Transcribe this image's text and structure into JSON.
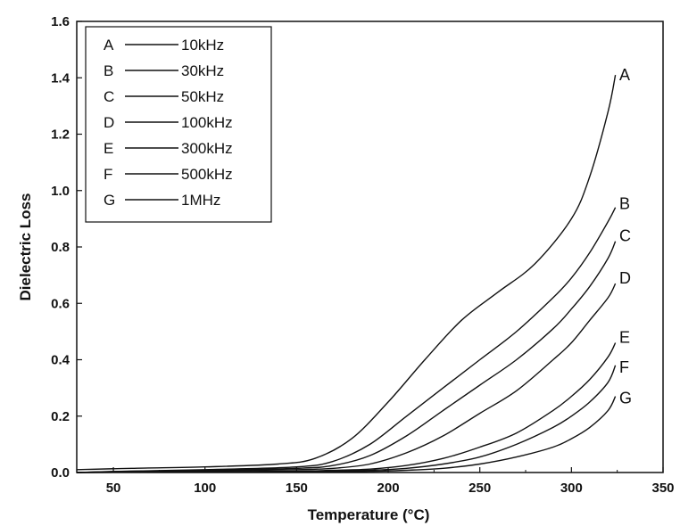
{
  "chart_data": {
    "type": "line",
    "title": "",
    "xlabel": "Temperature (°C)",
    "ylabel": "Dielectric Loss",
    "xlim": [
      30,
      350
    ],
    "ylim": [
      0,
      1.6
    ],
    "xticks": [
      50,
      100,
      150,
      200,
      250,
      300,
      350
    ],
    "xtick_labels": [
      "50",
      "100",
      "150",
      "200",
      "250",
      "300",
      "350"
    ],
    "yticks": [
      0,
      0.2,
      0.4,
      0.6,
      0.8,
      1.0,
      1.2,
      1.4,
      1.6
    ],
    "ytick_labels": [
      "0.0",
      "0.2",
      "0.4",
      "0.6",
      "0.8",
      "1.0",
      "1.2",
      "1.4",
      "1.6"
    ],
    "grid": false,
    "legend_position": "top-left",
    "legend": [
      {
        "key": "A",
        "text": "10kHz"
      },
      {
        "key": "B",
        "text": "30kHz"
      },
      {
        "key": "C",
        "text": "50kHz"
      },
      {
        "key": "D",
        "text": "100kHz"
      },
      {
        "key": "E",
        "text": "300kHz"
      },
      {
        "key": "F",
        "text": "500kHz"
      },
      {
        "key": "G",
        "text": "1MHz"
      }
    ],
    "series": [
      {
        "name": "A",
        "x": [
          30,
          60,
          100,
          140,
          160,
          180,
          200,
          220,
          240,
          260,
          280,
          300,
          310,
          320,
          324
        ],
        "y": [
          0.01,
          0.015,
          0.02,
          0.03,
          0.05,
          0.12,
          0.25,
          0.4,
          0.54,
          0.64,
          0.74,
          0.9,
          1.05,
          1.28,
          1.41
        ]
      },
      {
        "name": "B",
        "x": [
          30,
          60,
          100,
          150,
          170,
          190,
          210,
          230,
          250,
          270,
          290,
          300,
          310,
          320,
          324
        ],
        "y": [
          0.0,
          0.005,
          0.01,
          0.02,
          0.04,
          0.1,
          0.2,
          0.3,
          0.4,
          0.5,
          0.62,
          0.69,
          0.78,
          0.89,
          0.94
        ]
      },
      {
        "name": "C",
        "x": [
          30,
          60,
          100,
          150,
          170,
          190,
          210,
          230,
          250,
          270,
          290,
          300,
          310,
          320,
          324
        ],
        "y": [
          0.0,
          0.005,
          0.008,
          0.015,
          0.025,
          0.06,
          0.13,
          0.22,
          0.31,
          0.4,
          0.51,
          0.58,
          0.66,
          0.76,
          0.82
        ]
      },
      {
        "name": "D",
        "x": [
          30,
          60,
          100,
          150,
          170,
          190,
          210,
          230,
          250,
          270,
          290,
          300,
          310,
          320,
          324
        ],
        "y": [
          0.0,
          0.004,
          0.006,
          0.01,
          0.015,
          0.03,
          0.07,
          0.13,
          0.21,
          0.29,
          0.4,
          0.46,
          0.54,
          0.62,
          0.67
        ]
      },
      {
        "name": "E",
        "x": [
          30,
          60,
          100,
          150,
          170,
          190,
          210,
          230,
          250,
          270,
          290,
          300,
          310,
          320,
          324
        ],
        "y": [
          0.0,
          0.002,
          0.003,
          0.005,
          0.008,
          0.012,
          0.025,
          0.05,
          0.09,
          0.14,
          0.22,
          0.27,
          0.33,
          0.41,
          0.46
        ]
      },
      {
        "name": "F",
        "x": [
          30,
          60,
          100,
          150,
          170,
          190,
          210,
          230,
          250,
          270,
          290,
          300,
          310,
          320,
          324
        ],
        "y": [
          0.0,
          0.001,
          0.002,
          0.003,
          0.005,
          0.008,
          0.015,
          0.03,
          0.055,
          0.1,
          0.16,
          0.2,
          0.25,
          0.32,
          0.38
        ]
      },
      {
        "name": "G",
        "x": [
          30,
          60,
          100,
          150,
          170,
          190,
          210,
          230,
          250,
          270,
          290,
          300,
          310,
          320,
          324
        ],
        "y": [
          0.0,
          0.001,
          0.001,
          0.002,
          0.003,
          0.004,
          0.008,
          0.015,
          0.03,
          0.055,
          0.09,
          0.12,
          0.16,
          0.22,
          0.27
        ]
      }
    ]
  }
}
